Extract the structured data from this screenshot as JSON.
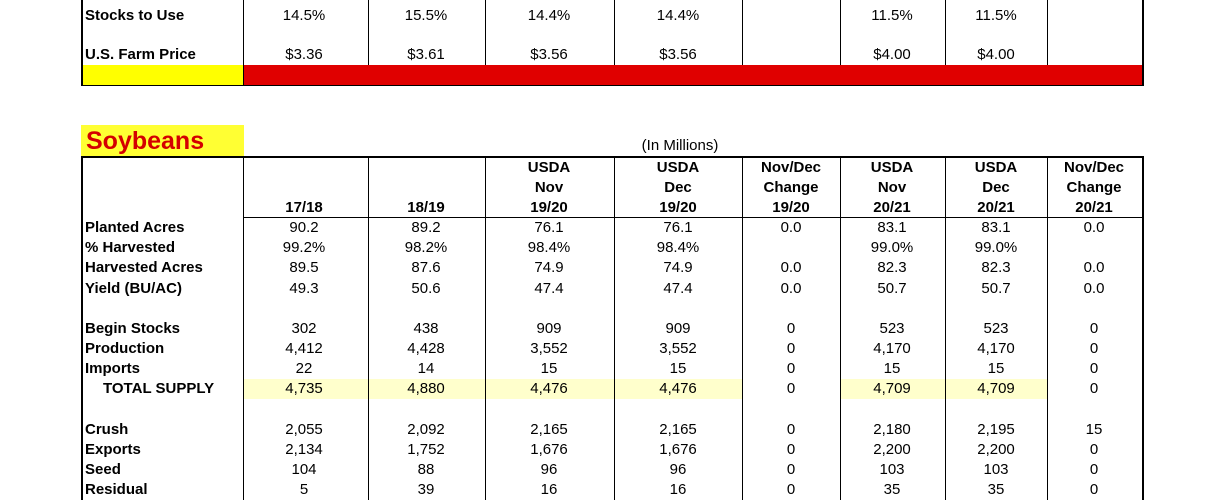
{
  "top_section": {
    "rows": [
      {
        "label": "Stocks to Use",
        "values": [
          "14.5%",
          "15.5%",
          "14.4%",
          "14.4%",
          "",
          "11.5%",
          "11.5%",
          ""
        ]
      },
      {
        "label": "U.S. Farm Price",
        "values": [
          "$3.36",
          "$3.61",
          "$3.56",
          "$3.56",
          "",
          "$4.00",
          "$4.00",
          ""
        ]
      }
    ],
    "colors": {
      "label_highlight": "#ffff00",
      "bar": "#e00000"
    }
  },
  "soybeans": {
    "title": "Soybeans",
    "units_note": "(In Millions)",
    "colors": {
      "title_highlight": "#ffff33",
      "title_text": "#d40000",
      "total_supply_highlight": "#ffffcc"
    },
    "headers": [
      [
        "17/18"
      ],
      [
        "18/19"
      ],
      [
        "USDA",
        "Nov",
        "19/20"
      ],
      [
        "USDA",
        "Dec",
        "19/20"
      ],
      [
        "Nov/Dec",
        "Change",
        "19/20"
      ],
      [
        "USDA",
        "Nov",
        "20/21"
      ],
      [
        "USDA",
        "Dec",
        "20/21"
      ],
      [
        "Nov/Dec",
        "Change",
        "20/21"
      ]
    ],
    "rows": [
      {
        "label": "Planted Acres",
        "values": [
          "90.2",
          "89.2",
          "76.1",
          "76.1",
          "0.0",
          "83.1",
          "83.1",
          "0.0"
        ]
      },
      {
        "label": "% Harvested",
        "values": [
          "99.2%",
          "98.2%",
          "98.4%",
          "98.4%",
          "",
          "99.0%",
          "99.0%",
          ""
        ]
      },
      {
        "label": "Harvested Acres",
        "values": [
          "89.5",
          "87.6",
          "74.9",
          "74.9",
          "0.0",
          "82.3",
          "82.3",
          "0.0"
        ]
      },
      {
        "label": "Yield (BU/AC)",
        "values": [
          "49.3",
          "50.6",
          "47.4",
          "47.4",
          "0.0",
          "50.7",
          "50.7",
          "0.0"
        ]
      },
      {
        "label": "Begin Stocks",
        "values": [
          "302",
          "438",
          "909",
          "909",
          "0",
          "523",
          "523",
          "0"
        ]
      },
      {
        "label": "Production",
        "values": [
          "4,412",
          "4,428",
          "3,552",
          "3,552",
          "0",
          "4,170",
          "4,170",
          "0"
        ]
      },
      {
        "label": "Imports",
        "values": [
          "22",
          "14",
          "15",
          "15",
          "0",
          "15",
          "15",
          "0"
        ]
      },
      {
        "label": "TOTAL SUPPLY",
        "values": [
          "4,735",
          "4,880",
          "4,476",
          "4,476",
          "0",
          "4,709",
          "4,709",
          "0"
        ]
      },
      {
        "label": "Crush",
        "values": [
          "2,055",
          "2,092",
          "2,165",
          "2,165",
          "0",
          "2,180",
          "2,195",
          "15"
        ]
      },
      {
        "label": "Exports",
        "values": [
          "2,134",
          "1,752",
          "1,676",
          "1,676",
          "0",
          "2,200",
          "2,200",
          "0"
        ]
      },
      {
        "label": "Seed",
        "values": [
          "104",
          "88",
          "96",
          "96",
          "0",
          "103",
          "103",
          "0"
        ]
      },
      {
        "label": "Residual",
        "values": [
          "5",
          "39",
          "16",
          "16",
          "0",
          "35",
          "35",
          "0"
        ]
      }
    ]
  }
}
